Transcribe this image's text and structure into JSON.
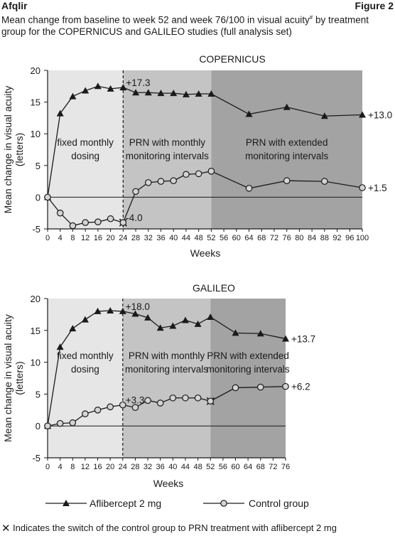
{
  "header": {
    "brand": "Afqlir",
    "figure_label": "Figure 2",
    "title_part1": "Mean change from baseline to week 52 and week 76/100 in visual acuity",
    "title_mark": "#",
    "title_part2": " by treatment group for the COPERNICUS and GALILEO studies (full analysis set)"
  },
  "legend": {
    "aflibercept": "Aflibercept 2 mg",
    "control": "Control group"
  },
  "footnote": {
    "symbol": "✕",
    "text": "Indicates the switch of the control group to PRN treatment with aflibercept 2 mg"
  },
  "colors": {
    "phase1": "#e6e6e6",
    "phase2": "#c4c4c4",
    "phase3": "#a3a3a3",
    "line": "#1a1a1a",
    "marker_fill_control": "#d4d4d4"
  },
  "chart_data": [
    {
      "type": "line",
      "title": "COPERNICUS",
      "xlabel": "Weeks",
      "ylabel": "Mean change in visual acuity (letters)",
      "xlim": [
        0,
        100
      ],
      "ylim": [
        -5,
        20
      ],
      "xticks": [
        0,
        4,
        8,
        12,
        16,
        20,
        24,
        28,
        32,
        36,
        40,
        44,
        48,
        52,
        56,
        60,
        64,
        68,
        72,
        76,
        80,
        84,
        88,
        92,
        96,
        100
      ],
      "yticks": [
        -5,
        0,
        5,
        10,
        15,
        20
      ],
      "phases": [
        {
          "label_line1": "fixed monthly",
          "label_line2": "dosing",
          "from": 0,
          "to": 24
        },
        {
          "label_line1": "PRN with monthly",
          "label_line2": "monitoring intervals",
          "from": 24,
          "to": 52
        },
        {
          "label_line1": "PRN with extended",
          "label_line2": "monitoring intervals",
          "from": 52,
          "to": 100
        }
      ],
      "series": [
        {
          "name": "Aflibercept 2 mg",
          "marker": "triangle",
          "x": [
            0,
            4,
            8,
            12,
            16,
            20,
            24,
            28,
            32,
            36,
            40,
            44,
            48,
            52,
            64,
            76,
            88,
            100
          ],
          "y": [
            0,
            13.2,
            15.9,
            16.8,
            17.5,
            17.1,
            17.3,
            16.5,
            16.5,
            16.4,
            16.4,
            16.2,
            16.3,
            16.3,
            13.1,
            14.2,
            12.8,
            13.0
          ]
        },
        {
          "name": "Control group",
          "marker": "circle",
          "x": [
            0,
            4,
            8,
            12,
            16,
            20,
            24,
            28,
            32,
            36,
            40,
            44,
            48,
            52,
            64,
            76,
            88,
            100
          ],
          "y": [
            0,
            -2.5,
            -4.5,
            -4.0,
            -3.9,
            -3.4,
            -4.0,
            0.9,
            2.3,
            2.5,
            2.6,
            3.6,
            3.7,
            4.1,
            1.4,
            2.6,
            2.5,
            1.5
          ]
        }
      ],
      "switch_point": {
        "x": 24,
        "y": -4.0
      },
      "annotations": [
        {
          "text": "+17.3",
          "x": 24,
          "y": 17.3
        },
        {
          "text": "-4.0",
          "x": 24,
          "y": -4.0
        },
        {
          "text": "+13.0",
          "x": 100,
          "y": 13.0
        },
        {
          "text": "+1.5",
          "x": 100,
          "y": 1.5
        }
      ]
    },
    {
      "type": "line",
      "title": "GALILEO",
      "xlabel": "Weeks",
      "ylabel": "Mean change in visual acuity (letters)",
      "xlim": [
        0,
        76
      ],
      "ylim": [
        -5,
        20
      ],
      "xticks": [
        0,
        4,
        8,
        12,
        16,
        20,
        24,
        28,
        32,
        36,
        40,
        44,
        48,
        52,
        56,
        60,
        64,
        68,
        72,
        76
      ],
      "yticks": [
        -5,
        0,
        5,
        10,
        15,
        20
      ],
      "phases": [
        {
          "label_line1": "fixed monthly",
          "label_line2": "dosing",
          "from": 0,
          "to": 24
        },
        {
          "label_line1": "PRN with monthly",
          "label_line2": "monitoring intervals",
          "from": 24,
          "to": 52
        },
        {
          "label_line1": "PRN with extended",
          "label_line2": "monitoring intervals",
          "from": 52,
          "to": 76
        }
      ],
      "series": [
        {
          "name": "Aflibercept 2 mg",
          "marker": "triangle",
          "x": [
            0,
            4,
            8,
            12,
            16,
            20,
            24,
            28,
            32,
            36,
            40,
            44,
            48,
            52,
            60,
            68,
            76
          ],
          "y": [
            0,
            12.4,
            15.3,
            16.7,
            18.0,
            18.1,
            18.0,
            17.6,
            17.0,
            15.4,
            15.7,
            16.6,
            16.0,
            17.1,
            14.6,
            14.5,
            13.7
          ]
        },
        {
          "name": "Control group",
          "marker": "circle",
          "x": [
            0,
            4,
            8,
            12,
            16,
            20,
            24,
            28,
            32,
            36,
            40,
            44,
            48,
            52,
            60,
            68,
            76
          ],
          "y": [
            0,
            0.4,
            0.5,
            1.9,
            2.5,
            3.0,
            3.3,
            2.9,
            4.0,
            3.6,
            4.4,
            4.4,
            4.4,
            3.9,
            6.0,
            6.1,
            6.2
          ]
        }
      ],
      "switch_point": {
        "x": 52,
        "y": 3.9
      },
      "annotations": [
        {
          "text": "+18.0",
          "x": 24,
          "y": 18.0
        },
        {
          "text": "+3.3",
          "x": 24,
          "y": 3.3
        },
        {
          "text": "+13.7",
          "x": 76,
          "y": 13.7
        },
        {
          "text": "+6.2",
          "x": 76,
          "y": 6.2
        }
      ]
    }
  ]
}
